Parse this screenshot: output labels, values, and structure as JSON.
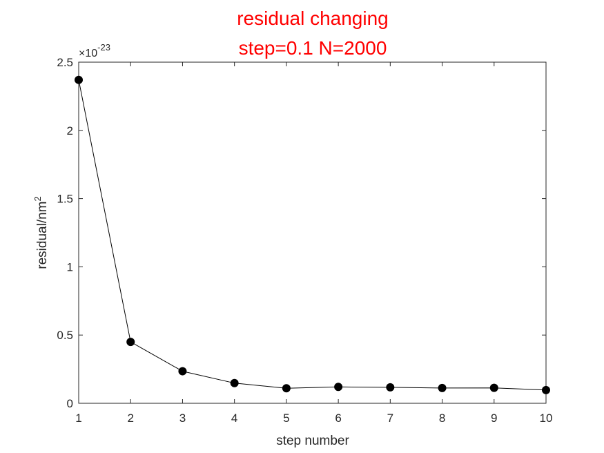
{
  "chart_data": {
    "type": "line",
    "title_lines": [
      "residual changing",
      "step=0.1 N=2000"
    ],
    "title_color": "#ff0000",
    "xlabel": "step number",
    "ylabel_base": "residual/nm",
    "ylabel_sup": "2",
    "exponent_base": "×10",
    "exponent_power": "-23",
    "xlim": [
      1,
      10
    ],
    "ylim": [
      0,
      2.5
    ],
    "x_ticks": [
      1,
      2,
      3,
      4,
      5,
      6,
      7,
      8,
      9,
      10
    ],
    "y_ticks": [
      0,
      0.5,
      1,
      1.5,
      2,
      2.5
    ],
    "x_tick_labels": [
      "1",
      "2",
      "3",
      "4",
      "5",
      "6",
      "7",
      "8",
      "9",
      "10"
    ],
    "y_tick_labels": [
      "0",
      "0.5",
      "1",
      "1.5",
      "2",
      "2.5"
    ],
    "series": [
      {
        "x": [
          1,
          2,
          3,
          4,
          5,
          6,
          7,
          8,
          9,
          10
        ],
        "y": [
          2.37,
          0.45,
          0.235,
          0.148,
          0.11,
          0.12,
          0.117,
          0.112,
          0.113,
          0.097
        ],
        "color": "#000000",
        "marker": "filled-circle"
      }
    ],
    "grid": false,
    "box": true
  }
}
